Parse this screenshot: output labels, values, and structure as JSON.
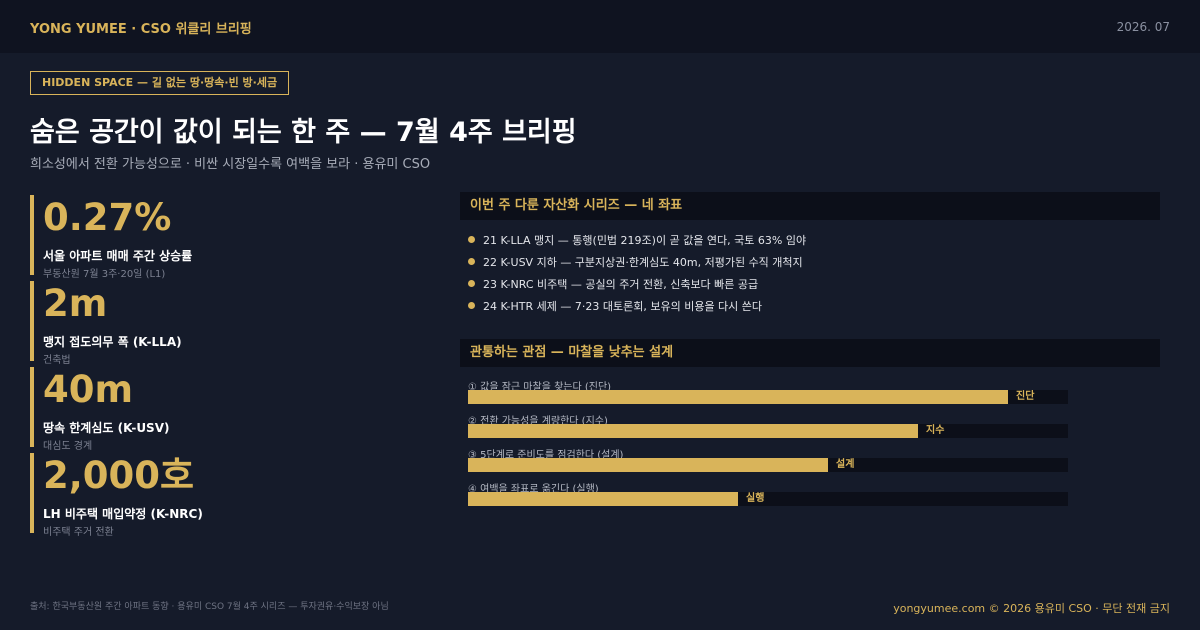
{
  "header": {
    "brand": "YONG YUMEE  ·  CSO 위클리 브리핑",
    "date": "2026. 07"
  },
  "tag": "HIDDEN SPACE — 길 없는 땅·땅속·빈 방·세금",
  "title": "숨은 공간이 값이 되는 한 주 — 7월 4주 브리핑",
  "subtitle": "희소성에서 전환 가능성으로 · 비싼 시장일수록 여백을 보라 · 용유미 CSO",
  "metrics": [
    {
      "value": "0.27%",
      "label": "서울 아파트 매매 주간 상승률",
      "note": "부동산원 7월 3주·20일 (L1)"
    },
    {
      "value": "2m",
      "label": "맹지 접도의무 폭 (K-LLA)",
      "note": "건축법"
    },
    {
      "value": "40m",
      "label": "땅속 한계심도 (K-USV)",
      "note": "대심도 경계"
    },
    {
      "value": "2,000호",
      "label": "LH 비주택 매입약정 (K-NRC)",
      "note": "비주택 주거 전환"
    }
  ],
  "series": {
    "heading": "이번 주 다룬 자산화 시리즈 — 네 좌표",
    "items": [
      "21  K-LLA 맹지 — 통행(민법 219조)이 곧 값을 연다, 국토 63% 임야",
      "22  K-USV 지하 — 구분지상권·한계심도 40m, 저평가된 수직 개척지",
      "23  K-NRC 비주택 — 공실의 주거 전환, 신축보다 빠른 공급",
      "24  K-HTR 세제 — 7·23 대토론회, 보유의 비용을 다시 쓴다"
    ]
  },
  "perspective": {
    "heading": "관통하는 관점 — 마찰을 낮추는 설계",
    "steps": [
      {
        "label": "① 값을 잠근 마찰을 찾는다 (진단)",
        "tag": "진단",
        "level": 0.9
      },
      {
        "label": "② 전환 가능성을 계량한다 (지수)",
        "tag": "지수",
        "level": 0.75
      },
      {
        "label": "③ 5단계로 준비도를 점검한다 (설계)",
        "tag": "설계",
        "level": 0.6
      },
      {
        "label": "④ 여백을 좌표로 옮긴다 (실행)",
        "tag": "실행",
        "level": 0.45
      }
    ]
  },
  "footer": {
    "source": "출처: 한국부동산원 주간 아파트 동향 · 용유미 CSO 7월 4주 시리즈 — 투자권유·수익보장 아님",
    "copyright": "yongyumee.com  ©  2026 용유미 CSO  ·  무단 전재 금지"
  },
  "colors": {
    "accent": "#d9b45a",
    "background": "#151b2a",
    "panel": "#0c0f19"
  }
}
